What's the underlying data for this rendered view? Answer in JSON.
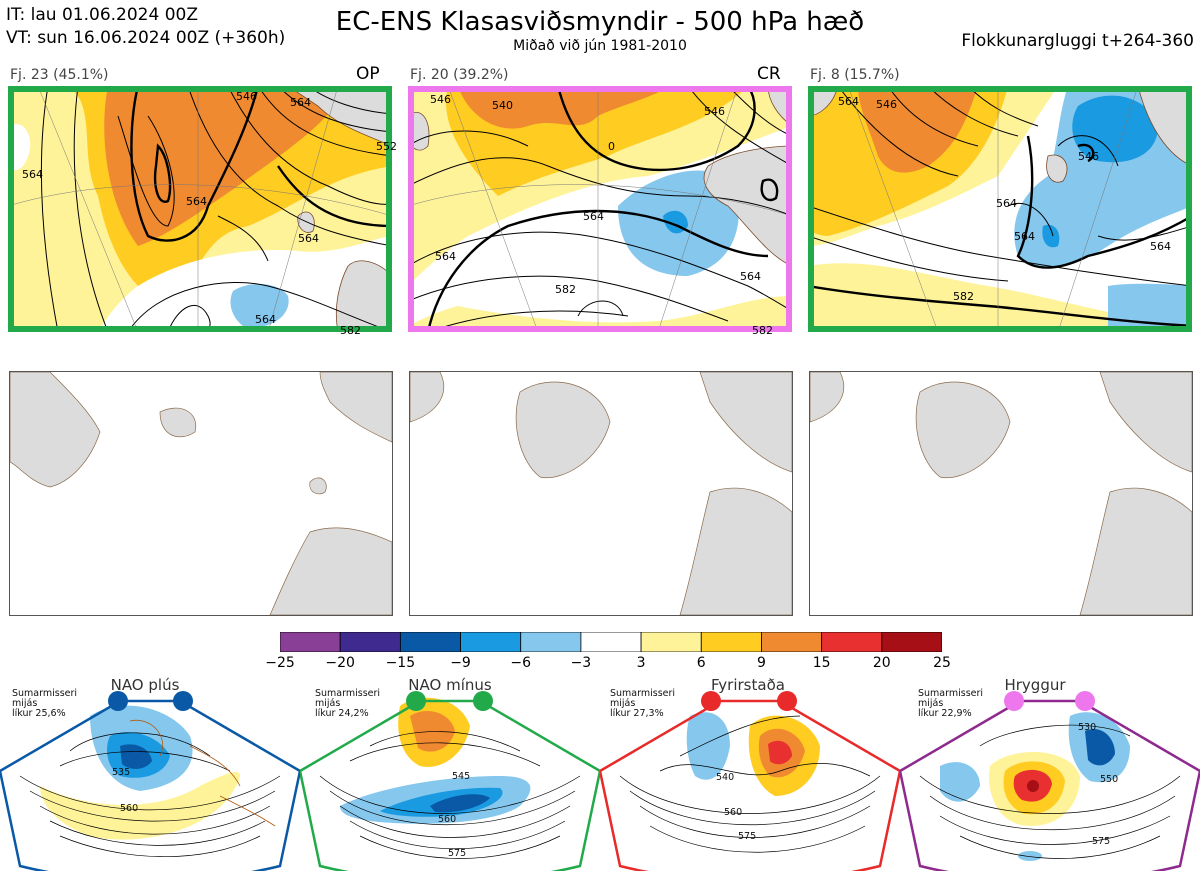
{
  "header": {
    "init_time": "IT: lau 01.06.2024 00Z",
    "valid_time": "VT: sun 16.06.2024 00Z  (+360h)",
    "title": "EC-ENS Klasasviðsmyndir - 500 hPa hæð",
    "subtitle": "Miðað við jún 1981-2010",
    "window": "Flokkunargluggi t+264-360"
  },
  "scenarios": [
    {
      "label": "Fj. 23 (45.1%)",
      "tag": "OP",
      "border_color": "#22aa4a"
    },
    {
      "label": "Fj. 20 (39.2%)",
      "tag": "CR",
      "border_color": "#ee77ee"
    },
    {
      "label": "Fj. 8 (15.7%)",
      "tag": "",
      "border_color": "#22aa4a"
    }
  ],
  "colorbar": {
    "ticks": [
      "−25",
      "−20",
      "−15",
      "−9",
      "−6",
      "−3",
      "3",
      "6",
      "9",
      "15",
      "20",
      "25"
    ],
    "colors": [
      "#8a3f96",
      "#3f2b8f",
      "#0a59a6",
      "#1a9ae0",
      "#86c7ee",
      "#ffffff",
      "#fff39a",
      "#ffcc22",
      "#f08a30",
      "#e83030",
      "#a50f15"
    ]
  },
  "climate_regimes": [
    {
      "title": "NAO plús",
      "season": "Sumarmisseri",
      "state": "mijás",
      "prob": "líkur 25,6%",
      "color": "#0a59a6",
      "labels": [
        "535",
        "560"
      ]
    },
    {
      "title": "NAO mínus",
      "season": "Sumarmisseri",
      "state": "mijás",
      "prob": "líkur 24,2%",
      "color": "#22aa4a",
      "labels": [
        "545",
        "560",
        "575"
      ]
    },
    {
      "title": "Fyrirstaða",
      "season": "Sumarmisseri",
      "state": "mijás",
      "prob": "líkur 27,3%",
      "color": "#e82a2a",
      "labels": [
        "540",
        "560",
        "575"
      ]
    },
    {
      "title": "Hryggur",
      "season": "Sumarmisseri",
      "state": "mijás",
      "prob": "líkur 22,9%",
      "color": "#8e2a8e",
      "labels": [
        "530",
        "550",
        "575"
      ]
    }
  ],
  "contour_labels": {
    "p1": [
      "564",
      "546",
      "564",
      "564",
      "564",
      "564",
      "552",
      "582"
    ],
    "p2": [
      "546",
      "540",
      "0",
      "546",
      "564",
      "564",
      "564",
      "582",
      "582"
    ],
    "p3": [
      "564",
      "546",
      "546",
      "564",
      "564",
      "564",
      "582"
    ]
  }
}
